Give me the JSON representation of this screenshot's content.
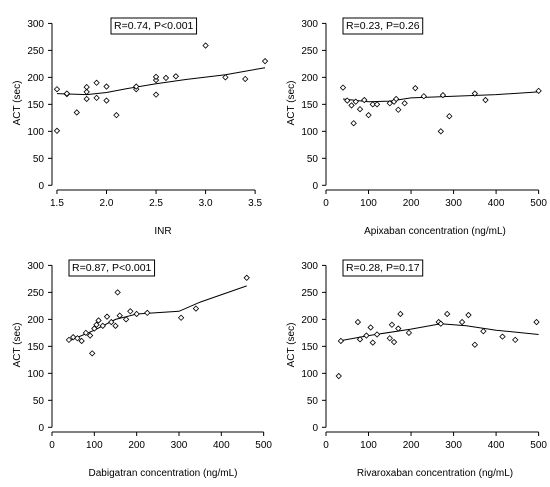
{
  "figure": {
    "background": "#ffffff",
    "ink": "#000000"
  },
  "chart_data": [
    {
      "type": "scatter",
      "xlabel": "INR",
      "ylabel": "ACT (sec)",
      "annotation": "R=0.74, P<0.001",
      "annotation_position": "top-center",
      "xlim": [
        1.45,
        3.65
      ],
      "ylim": [
        -5,
        310
      ],
      "x_ticks": [
        1.5,
        2.0,
        2.5,
        3.0,
        3.5
      ],
      "x_tick_labels": [
        "1.5",
        "2.0",
        "2.5",
        "3.0",
        "3.5"
      ],
      "y_ticks": [
        0,
        50,
        100,
        150,
        200,
        250,
        300
      ],
      "y_tick_labels": [
        "0",
        "50",
        "100",
        "150",
        "200",
        "250",
        "300"
      ],
      "grid": false,
      "points": [
        {
          "x": 1.5,
          "y": 101
        },
        {
          "x": 1.5,
          "y": 178
        },
        {
          "x": 1.6,
          "y": 169
        },
        {
          "x": 1.6,
          "y": 170
        },
        {
          "x": 1.7,
          "y": 135
        },
        {
          "x": 1.8,
          "y": 160
        },
        {
          "x": 1.8,
          "y": 173
        },
        {
          "x": 1.8,
          "y": 182
        },
        {
          "x": 1.9,
          "y": 190
        },
        {
          "x": 1.9,
          "y": 162
        },
        {
          "x": 2.0,
          "y": 157
        },
        {
          "x": 2.0,
          "y": 183
        },
        {
          "x": 2.1,
          "y": 130
        },
        {
          "x": 2.3,
          "y": 178
        },
        {
          "x": 2.3,
          "y": 183
        },
        {
          "x": 2.5,
          "y": 195
        },
        {
          "x": 2.5,
          "y": 201
        },
        {
          "x": 2.5,
          "y": 168
        },
        {
          "x": 2.6,
          "y": 199
        },
        {
          "x": 2.7,
          "y": 202
        },
        {
          "x": 3.0,
          "y": 259
        },
        {
          "x": 3.2,
          "y": 200
        },
        {
          "x": 3.4,
          "y": 197
        },
        {
          "x": 3.6,
          "y": 230
        }
      ],
      "fit_line": [
        {
          "x": 1.5,
          "y": 170
        },
        {
          "x": 1.8,
          "y": 168
        },
        {
          "x": 2.0,
          "y": 172
        },
        {
          "x": 2.2,
          "y": 179
        },
        {
          "x": 2.5,
          "y": 188
        },
        {
          "x": 2.8,
          "y": 196
        },
        {
          "x": 3.2,
          "y": 205
        },
        {
          "x": 3.6,
          "y": 218
        }
      ]
    },
    {
      "type": "scatter",
      "xlabel": "Apixaban concentration (ng/mL)",
      "ylabel": "ACT (sec)",
      "annotation": "R=0.23, P=0.26",
      "annotation_position": "top-left",
      "xlim": [
        0,
        515
      ],
      "ylim": [
        -5,
        310
      ],
      "x_ticks": [
        0,
        100,
        200,
        300,
        400,
        500
      ],
      "x_tick_labels": [
        "0",
        "100",
        "200",
        "300",
        "400",
        "500"
      ],
      "y_ticks": [
        0,
        50,
        100,
        150,
        200,
        250,
        300
      ],
      "y_tick_labels": [
        "0",
        "50",
        "100",
        "150",
        "200",
        "250",
        "300"
      ],
      "grid": false,
      "points": [
        {
          "x": 40,
          "y": 181
        },
        {
          "x": 50,
          "y": 157
        },
        {
          "x": 60,
          "y": 148
        },
        {
          "x": 65,
          "y": 115
        },
        {
          "x": 70,
          "y": 155
        },
        {
          "x": 80,
          "y": 141
        },
        {
          "x": 90,
          "y": 158
        },
        {
          "x": 100,
          "y": 130
        },
        {
          "x": 110,
          "y": 150
        },
        {
          "x": 120,
          "y": 150
        },
        {
          "x": 150,
          "y": 152
        },
        {
          "x": 160,
          "y": 155
        },
        {
          "x": 165,
          "y": 160
        },
        {
          "x": 170,
          "y": 140
        },
        {
          "x": 185,
          "y": 152
        },
        {
          "x": 210,
          "y": 180
        },
        {
          "x": 230,
          "y": 165
        },
        {
          "x": 270,
          "y": 100
        },
        {
          "x": 275,
          "y": 167
        },
        {
          "x": 290,
          "y": 128
        },
        {
          "x": 350,
          "y": 170
        },
        {
          "x": 375,
          "y": 158
        },
        {
          "x": 500,
          "y": 175
        }
      ],
      "fit_line": [
        {
          "x": 40,
          "y": 160
        },
        {
          "x": 100,
          "y": 155
        },
        {
          "x": 150,
          "y": 156
        },
        {
          "x": 200,
          "y": 162
        },
        {
          "x": 300,
          "y": 165
        },
        {
          "x": 400,
          "y": 168
        },
        {
          "x": 500,
          "y": 173
        }
      ]
    },
    {
      "type": "scatter",
      "xlabel": "Dabigatran concentration (ng/mL)",
      "ylabel": "ACT (sec)",
      "annotation": "R=0.87, P<0.001",
      "annotation_position": "top-left",
      "xlim": [
        0,
        515
      ],
      "ylim": [
        -5,
        310
      ],
      "x_ticks": [
        0,
        100,
        200,
        300,
        400,
        500
      ],
      "x_tick_labels": [
        "0",
        "100",
        "200",
        "300",
        "400",
        "500"
      ],
      "y_ticks": [
        0,
        50,
        100,
        150,
        200,
        250,
        300
      ],
      "y_tick_labels": [
        "0",
        "50",
        "100",
        "150",
        "200",
        "250",
        "300"
      ],
      "grid": false,
      "points": [
        {
          "x": 40,
          "y": 162
        },
        {
          "x": 50,
          "y": 167
        },
        {
          "x": 60,
          "y": 165
        },
        {
          "x": 70,
          "y": 160
        },
        {
          "x": 80,
          "y": 175
        },
        {
          "x": 90,
          "y": 170
        },
        {
          "x": 95,
          "y": 137
        },
        {
          "x": 100,
          "y": 183
        },
        {
          "x": 105,
          "y": 190
        },
        {
          "x": 110,
          "y": 198
        },
        {
          "x": 120,
          "y": 188
        },
        {
          "x": 130,
          "y": 205
        },
        {
          "x": 140,
          "y": 195
        },
        {
          "x": 150,
          "y": 188
        },
        {
          "x": 155,
          "y": 250
        },
        {
          "x": 160,
          "y": 207
        },
        {
          "x": 175,
          "y": 200
        },
        {
          "x": 185,
          "y": 215
        },
        {
          "x": 200,
          "y": 210
        },
        {
          "x": 225,
          "y": 212
        },
        {
          "x": 305,
          "y": 203
        },
        {
          "x": 340,
          "y": 220
        },
        {
          "x": 460,
          "y": 277
        }
      ],
      "fit_line": [
        {
          "x": 40,
          "y": 160
        },
        {
          "x": 100,
          "y": 180
        },
        {
          "x": 150,
          "y": 200
        },
        {
          "x": 200,
          "y": 210
        },
        {
          "x": 300,
          "y": 215
        },
        {
          "x": 350,
          "y": 232
        },
        {
          "x": 460,
          "y": 262
        }
      ]
    },
    {
      "type": "scatter",
      "xlabel": "Rivaroxaban concentration (ng/mL)",
      "ylabel": "ACT (sec)",
      "annotation": "R=0.28, P=0.17",
      "annotation_position": "top-left",
      "xlim": [
        0,
        515
      ],
      "ylim": [
        -5,
        310
      ],
      "x_ticks": [
        0,
        100,
        200,
        300,
        400,
        500
      ],
      "x_tick_labels": [
        "0",
        "100",
        "200",
        "300",
        "400",
        "500"
      ],
      "y_ticks": [
        0,
        50,
        100,
        150,
        200,
        250,
        300
      ],
      "y_tick_labels": [
        "0",
        "50",
        "100",
        "150",
        "200",
        "250",
        "300"
      ],
      "grid": false,
      "points": [
        {
          "x": 30,
          "y": 95
        },
        {
          "x": 35,
          "y": 160
        },
        {
          "x": 75,
          "y": 195
        },
        {
          "x": 80,
          "y": 163
        },
        {
          "x": 95,
          "y": 170
        },
        {
          "x": 105,
          "y": 185
        },
        {
          "x": 110,
          "y": 157
        },
        {
          "x": 120,
          "y": 172
        },
        {
          "x": 150,
          "y": 165
        },
        {
          "x": 155,
          "y": 190
        },
        {
          "x": 160,
          "y": 158
        },
        {
          "x": 170,
          "y": 183
        },
        {
          "x": 175,
          "y": 210
        },
        {
          "x": 195,
          "y": 175
        },
        {
          "x": 265,
          "y": 195
        },
        {
          "x": 270,
          "y": 192
        },
        {
          "x": 285,
          "y": 210
        },
        {
          "x": 320,
          "y": 195
        },
        {
          "x": 335,
          "y": 208
        },
        {
          "x": 350,
          "y": 153
        },
        {
          "x": 370,
          "y": 178
        },
        {
          "x": 415,
          "y": 168
        },
        {
          "x": 445,
          "y": 162
        },
        {
          "x": 495,
          "y": 195
        }
      ],
      "fit_line": [
        {
          "x": 30,
          "y": 160
        },
        {
          "x": 100,
          "y": 170
        },
        {
          "x": 200,
          "y": 182
        },
        {
          "x": 270,
          "y": 192
        },
        {
          "x": 330,
          "y": 188
        },
        {
          "x": 400,
          "y": 180
        },
        {
          "x": 500,
          "y": 172
        }
      ]
    }
  ]
}
